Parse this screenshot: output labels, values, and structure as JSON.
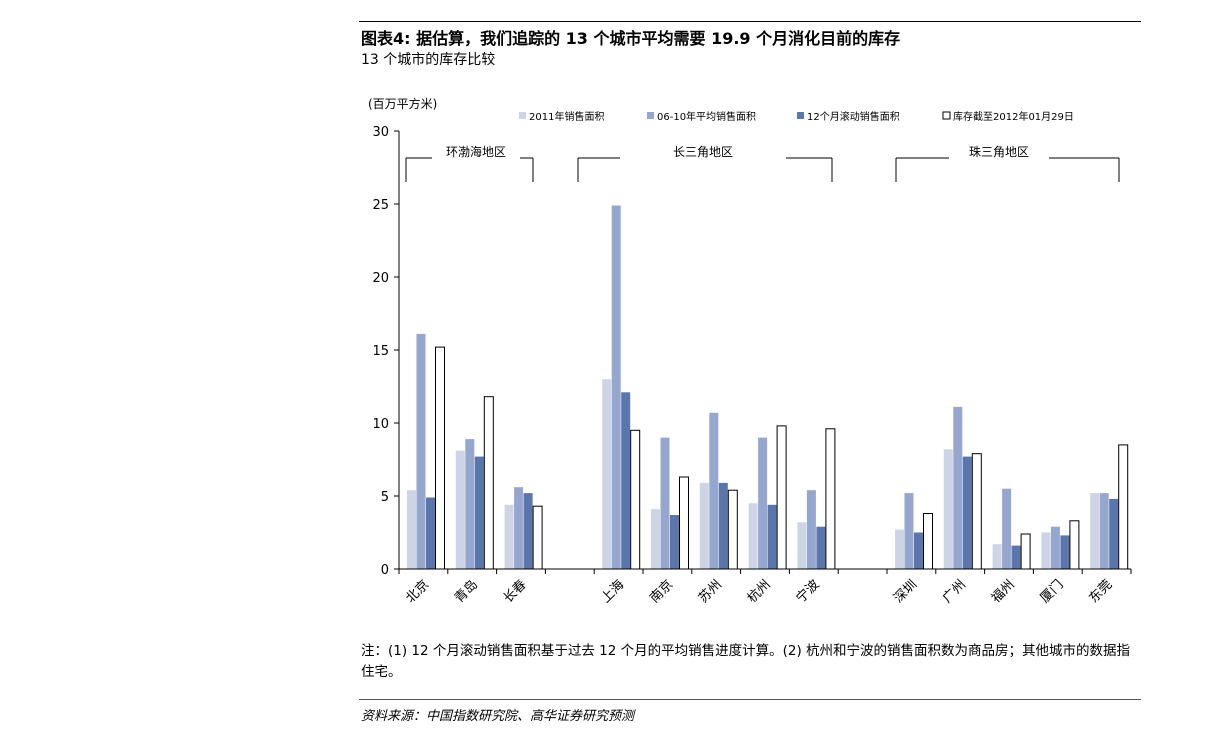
{
  "header": {
    "title": "图表4: 据估算，我们追踪的 13 个城市平均需要 19.9 个月消化目前的库存",
    "subtitle": "13 个城市的库存比较"
  },
  "note": "注：(1) 12 个月滚动销售面积基于过去 12 个月的平均销售进度计算。(2) 杭州和宁波的销售面积数为商品房；其他城市的数据指住宅。",
  "source": "资料来源：中国指数研究院、高华证券研究预测",
  "chart_data": {
    "type": "bar",
    "unit_label": "(百万平方米)",
    "ylim": [
      0,
      30
    ],
    "yticks": [
      0,
      5,
      10,
      15,
      20,
      25,
      30
    ],
    "categories": [
      "北京",
      "青岛",
      "长春",
      "上海",
      "南京",
      "苏州",
      "杭州",
      "宁波",
      "深圳",
      "广州",
      "福州",
      "厦门",
      "东莞"
    ],
    "groups": [
      {
        "name": "环渤海地区",
        "categories": [
          "北京",
          "青岛",
          "长春"
        ]
      },
      {
        "name": "长三角地区",
        "categories": [
          "上海",
          "南京",
          "苏州",
          "杭州",
          "宁波"
        ]
      },
      {
        "name": "珠三角地区",
        "categories": [
          "深圳",
          "广州",
          "福州",
          "厦门",
          "东莞"
        ]
      }
    ],
    "series": [
      {
        "name": "2011年销售面积",
        "color": "#cdd4e6",
        "values": [
          5.4,
          8.1,
          4.4,
          13.0,
          4.1,
          5.9,
          4.5,
          3.2,
          2.7,
          8.2,
          1.7,
          2.5,
          5.2
        ]
      },
      {
        "name": "06-10年平均销售面积",
        "color": "#95a7ce",
        "values": [
          16.1,
          8.9,
          5.6,
          24.9,
          9.0,
          10.7,
          9.0,
          5.4,
          5.2,
          11.1,
          5.5,
          2.9,
          5.2
        ]
      },
      {
        "name": "12个月滚动销售面积",
        "color": "#5b76ad",
        "values": [
          4.9,
          7.7,
          5.2,
          12.1,
          3.7,
          5.9,
          4.4,
          2.9,
          2.5,
          7.7,
          1.6,
          2.3,
          4.8
        ]
      },
      {
        "name": "库存截至2012年01月29日",
        "color": "#ffffff",
        "values": [
          15.2,
          11.8,
          4.3,
          9.5,
          6.3,
          5.4,
          9.8,
          9.6,
          3.8,
          7.9,
          2.4,
          3.3,
          8.5
        ]
      }
    ],
    "legend_position": "top",
    "grid": false
  }
}
